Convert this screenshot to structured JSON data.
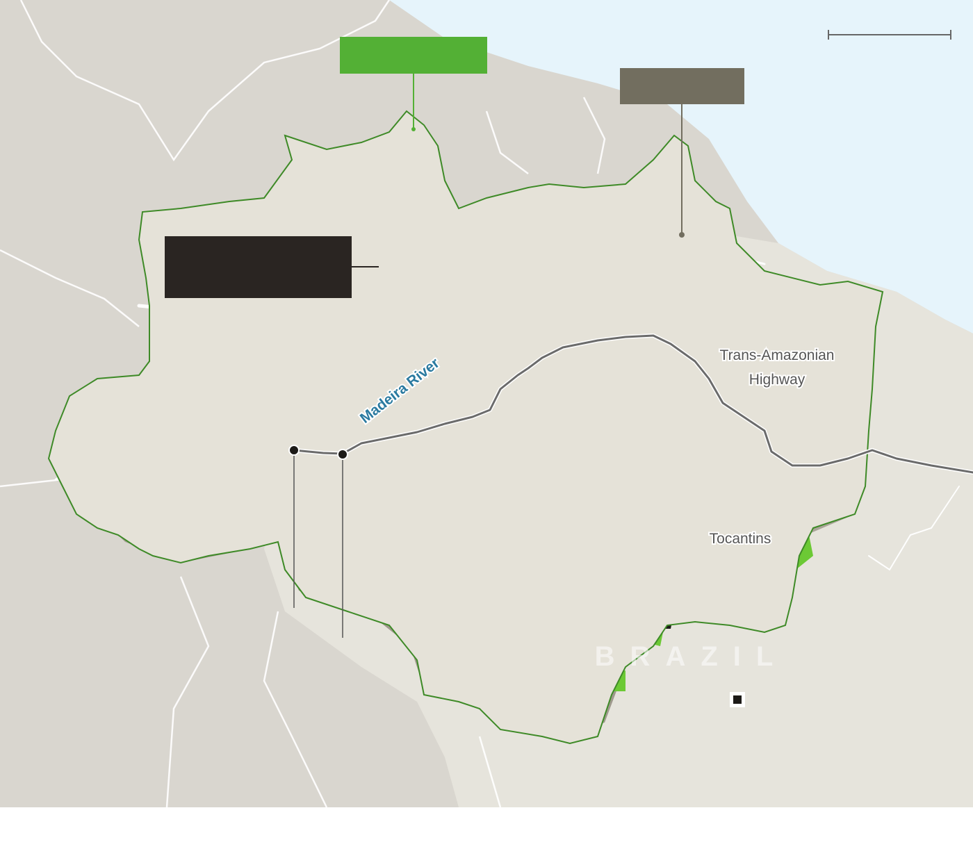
{
  "map": {
    "colors": {
      "ocean": "#e6f4fb",
      "neighbor_land": "#d9d6cf",
      "brazil_land": "#e6e4dc",
      "amazon_base": "#e5e2d8",
      "protected_green": "#6cc935",
      "deforested_gray": "#9e998c",
      "recent_black": "#1c1a17",
      "rivers": "#ffffff",
      "biome_border": "#3e8a27",
      "road": "#6b6b6b"
    },
    "labels": {
      "madeira_river": "Madeira River",
      "highway_line1": "Trans-Amazonian",
      "highway_line2": "Highway",
      "tocantins": "Tocantins",
      "brazil": "BRAZIL"
    },
    "legend": {
      "protected_color": "#53b035",
      "deforested_color": "#726e5f",
      "recent_color": "#2a2522"
    }
  }
}
